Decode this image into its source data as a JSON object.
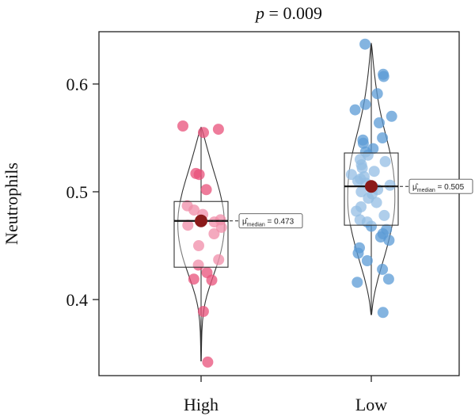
{
  "chart_data": {
    "type": "violin",
    "title": "p = 0.009",
    "title_prefix": "p",
    "title_rest": " = 0.009",
    "ylabel": "Neutrophils",
    "xlabel": "",
    "ylim": [
      0.32,
      0.65
    ],
    "yticks": [
      0.4,
      0.5,
      0.6
    ],
    "ytick_labels": [
      "0.4",
      "0.5",
      "0.6"
    ],
    "categories": [
      "High",
      "Low"
    ],
    "groups": [
      {
        "name": "High",
        "color": "#e8507a",
        "median": 0.473,
        "median_label": "= 0.473",
        "q1": 0.43,
        "q3": 0.491,
        "whisker_low": 0.343,
        "whisker_high": 0.56,
        "violin": [
          [
            0.343,
            0.002
          ],
          [
            0.36,
            0.005
          ],
          [
            0.38,
            0.012
          ],
          [
            0.4,
            0.045
          ],
          [
            0.42,
            0.12
          ],
          [
            0.44,
            0.2
          ],
          [
            0.46,
            0.245
          ],
          [
            0.48,
            0.245
          ],
          [
            0.5,
            0.2
          ],
          [
            0.52,
            0.13
          ],
          [
            0.54,
            0.065
          ],
          [
            0.56,
            0.005
          ]
        ],
        "points": [
          0.558,
          0.561,
          0.555,
          0.517,
          0.516,
          0.502,
          0.487,
          0.483,
          0.479,
          0.474,
          0.472,
          0.469,
          0.467,
          0.461,
          0.45,
          0.437,
          0.432,
          0.425,
          0.419,
          0.418,
          0.389,
          0.342
        ]
      },
      {
        "name": "Low",
        "color": "#5b9bd5",
        "median": 0.505,
        "median_label": "= 0.505",
        "q1": 0.469,
        "q3": 0.536,
        "whisker_low": 0.386,
        "whisker_high": 0.638,
        "violin": [
          [
            0.386,
            0.003
          ],
          [
            0.4,
            0.02
          ],
          [
            0.42,
            0.07
          ],
          [
            0.44,
            0.14
          ],
          [
            0.46,
            0.2
          ],
          [
            0.48,
            0.245
          ],
          [
            0.5,
            0.25
          ],
          [
            0.52,
            0.235
          ],
          [
            0.54,
            0.19
          ],
          [
            0.56,
            0.13
          ],
          [
            0.58,
            0.08
          ],
          [
            0.6,
            0.045
          ],
          [
            0.62,
            0.02
          ],
          [
            0.638,
            0.003
          ]
        ],
        "points": [
          0.637,
          0.609,
          0.607,
          0.591,
          0.581,
          0.576,
          0.57,
          0.564,
          0.55,
          0.548,
          0.545,
          0.54,
          0.537,
          0.534,
          0.53,
          0.528,
          0.525,
          0.522,
          0.519,
          0.516,
          0.514,
          0.512,
          0.51,
          0.508,
          0.506,
          0.504,
          0.502,
          0.5,
          0.498,
          0.494,
          0.49,
          0.486,
          0.482,
          0.478,
          0.474,
          0.472,
          0.468,
          0.465,
          0.461,
          0.458,
          0.455,
          0.448,
          0.443,
          0.436,
          0.428,
          0.419,
          0.416,
          0.388
        ]
      }
    ]
  }
}
